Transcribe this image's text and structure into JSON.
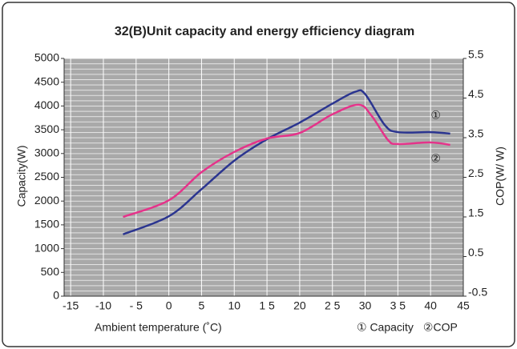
{
  "chart_data": {
    "type": "line",
    "title": "32(B)Unit capacity and energy efficiency diagram",
    "x_label": "Ambient temperature (˚C)",
    "y_label": "Capacity(W)",
    "y2_label": "COP(W/ W)",
    "xlim": [
      -16,
      45
    ],
    "xticks": [
      -15,
      -10,
      {
        "value": -5,
        "label": "- 5"
      },
      0,
      5,
      10,
      {
        "value": 15,
        "label": "1 5"
      },
      20,
      {
        "value": 25,
        "label": "2 5"
      },
      30,
      {
        "value": 35,
        "label": "3 5"
      },
      40,
      45
    ],
    "ylim": [
      0,
      5000
    ],
    "yticks": [
      0,
      500,
      1000,
      1500,
      2000,
      2500,
      3000,
      3500,
      4000,
      4500,
      5000
    ],
    "y2lim": [
      -0.5,
      5.5
    ],
    "y2ticks": [
      -0.5,
      0.5,
      1.5,
      2.5,
      3.5,
      4.5,
      5.5
    ],
    "grid": true,
    "series": [
      {
        "name": "① Capacity",
        "color": "#2b3590",
        "annotation": "①",
        "x": [
          -7,
          0,
          5,
          10,
          15,
          20,
          25,
          28.5,
          30,
          33,
          35,
          40,
          43
        ],
        "values": [
          1300,
          1680,
          2250,
          2850,
          3300,
          3650,
          4050,
          4300,
          4250,
          3600,
          3450,
          3450,
          3420
        ]
      },
      {
        "name": "②COP",
        "color": "#e5338a",
        "axis": "y2",
        "annotation": "②",
        "x": [
          -7,
          0,
          5,
          10,
          15,
          20,
          25,
          29,
          31,
          33.5,
          35,
          40,
          43
        ],
        "values": [
          1.5,
          1.92,
          2.63,
          3.14,
          3.48,
          3.62,
          4.09,
          4.33,
          4.05,
          3.44,
          3.34,
          3.38,
          3.32
        ]
      }
    ]
  }
}
